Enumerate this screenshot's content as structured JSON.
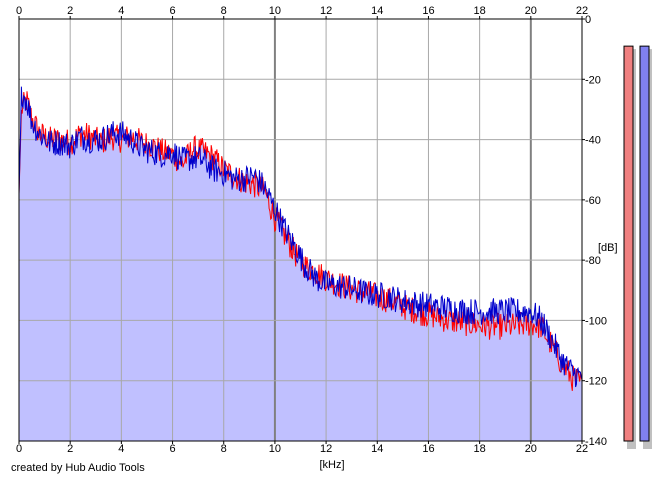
{
  "chart_data": {
    "type": "area",
    "xlabel": "[kHz]",
    "ylabel": "[dB]",
    "xlim": [
      0,
      22
    ],
    "ylim": [
      -140,
      0
    ],
    "x_ticks": [
      0,
      2,
      4,
      6,
      8,
      10,
      12,
      14,
      16,
      18,
      20,
      22
    ],
    "y_ticks": [
      0,
      -20,
      -40,
      -60,
      -80,
      -100,
      -120,
      -140
    ],
    "grid": true,
    "series": [
      {
        "color": "#ff0000",
        "points": [
          [
            0.0,
            -58
          ],
          [
            0.1,
            -30
          ],
          [
            0.3,
            -27
          ],
          [
            0.5,
            -33
          ],
          [
            0.8,
            -38
          ],
          [
            1.2,
            -40
          ],
          [
            1.6,
            -40
          ],
          [
            2.0,
            -41
          ],
          [
            2.4,
            -38
          ],
          [
            2.8,
            -39
          ],
          [
            3.2,
            -41
          ],
          [
            3.6,
            -39
          ],
          [
            4.0,
            -40
          ],
          [
            4.4,
            -39
          ],
          [
            4.8,
            -41
          ],
          [
            5.2,
            -42
          ],
          [
            5.6,
            -44
          ],
          [
            6.0,
            -45
          ],
          [
            6.4,
            -48
          ],
          [
            6.8,
            -43
          ],
          [
            7.2,
            -44
          ],
          [
            7.6,
            -46
          ],
          [
            8.0,
            -50
          ],
          [
            8.4,
            -52
          ],
          [
            8.8,
            -54
          ],
          [
            9.2,
            -55
          ],
          [
            9.6,
            -57
          ],
          [
            10.0,
            -66
          ],
          [
            10.4,
            -72
          ],
          [
            10.8,
            -78
          ],
          [
            11.2,
            -82
          ],
          [
            11.6,
            -84
          ],
          [
            12.0,
            -86
          ],
          [
            12.8,
            -89
          ],
          [
            13.6,
            -91
          ],
          [
            14.4,
            -93
          ],
          [
            15.2,
            -96
          ],
          [
            16.0,
            -98
          ],
          [
            16.8,
            -100
          ],
          [
            17.6,
            -101
          ],
          [
            18.4,
            -102
          ],
          [
            19.2,
            -102
          ],
          [
            20.0,
            -101
          ],
          [
            20.4,
            -102
          ],
          [
            20.8,
            -108
          ],
          [
            21.2,
            -114
          ],
          [
            21.6,
            -119
          ],
          [
            22.0,
            -121
          ]
        ]
      },
      {
        "color": "#0000cc",
        "points": [
          [
            0.0,
            -58
          ],
          [
            0.1,
            -24
          ],
          [
            0.3,
            -27
          ],
          [
            0.5,
            -34
          ],
          [
            0.8,
            -38
          ],
          [
            1.2,
            -41
          ],
          [
            1.6,
            -41
          ],
          [
            2.0,
            -42
          ],
          [
            2.4,
            -39
          ],
          [
            2.8,
            -40
          ],
          [
            3.2,
            -40
          ],
          [
            3.6,
            -38
          ],
          [
            4.0,
            -38
          ],
          [
            4.4,
            -40
          ],
          [
            4.8,
            -43
          ],
          [
            5.2,
            -44
          ],
          [
            5.6,
            -45
          ],
          [
            6.0,
            -44
          ],
          [
            6.4,
            -47
          ],
          [
            6.8,
            -46
          ],
          [
            7.2,
            -47
          ],
          [
            7.6,
            -50
          ],
          [
            8.0,
            -51
          ],
          [
            8.4,
            -53
          ],
          [
            8.8,
            -53
          ],
          [
            9.2,
            -52
          ],
          [
            9.6,
            -56
          ],
          [
            10.0,
            -63
          ],
          [
            10.4,
            -70
          ],
          [
            10.8,
            -76
          ],
          [
            11.2,
            -82
          ],
          [
            11.6,
            -86
          ],
          [
            12.0,
            -88
          ],
          [
            12.8,
            -89
          ],
          [
            13.6,
            -91
          ],
          [
            14.4,
            -92
          ],
          [
            15.2,
            -94
          ],
          [
            16.0,
            -95
          ],
          [
            16.8,
            -96
          ],
          [
            17.6,
            -97
          ],
          [
            18.4,
            -97
          ],
          [
            19.2,
            -97
          ],
          [
            20.0,
            -97
          ],
          [
            20.4,
            -100
          ],
          [
            20.8,
            -106
          ],
          [
            21.2,
            -113
          ],
          [
            21.6,
            -117
          ],
          [
            22.0,
            -119
          ]
        ]
      }
    ],
    "fill_color": "#c0c0ff",
    "meters": [
      {
        "channel": "left",
        "color": "#f08080",
        "level_db": -9
      },
      {
        "channel": "right",
        "color": "#8080f0",
        "level_db": -9
      }
    ]
  },
  "footer": {
    "credit": "created by Hub Audio Tools"
  }
}
